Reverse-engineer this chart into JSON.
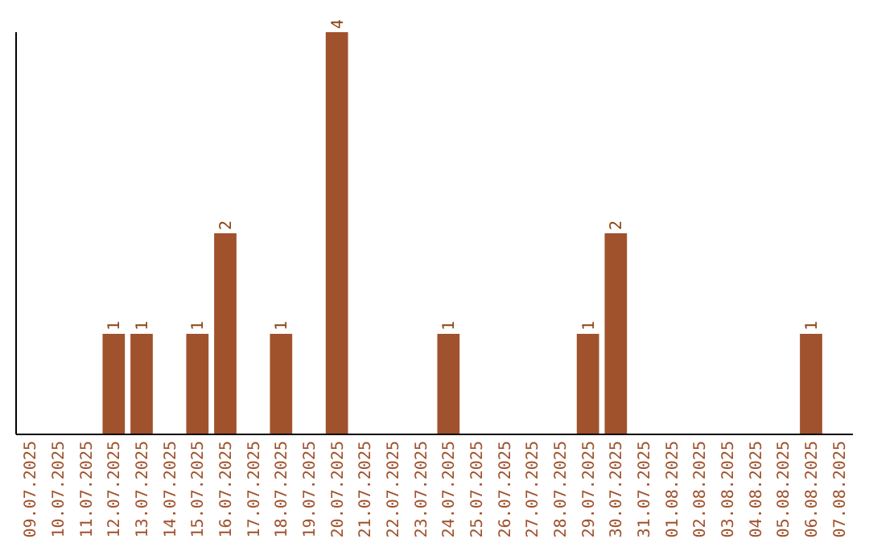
{
  "chart_data": {
    "type": "bar",
    "categories": [
      "09.07.2025",
      "10.07.2025",
      "11.07.2025",
      "12.07.2025",
      "13.07.2025",
      "14.07.2025",
      "15.07.2025",
      "16.07.2025",
      "17.07.2025",
      "18.07.2025",
      "19.07.2025",
      "20.07.2025",
      "21.07.2025",
      "22.07.2025",
      "23.07.2025",
      "24.07.2025",
      "25.07.2025",
      "26.07.2025",
      "27.07.2025",
      "28.07.2025",
      "29.07.2025",
      "30.07.2025",
      "31.07.2025",
      "01.08.2025",
      "02.08.2025",
      "03.08.2025",
      "04.08.2025",
      "05.08.2025",
      "06.08.2025",
      "07.08.2025"
    ],
    "values": [
      0,
      0,
      0,
      1,
      1,
      0,
      1,
      2,
      0,
      1,
      0,
      4,
      0,
      0,
      0,
      1,
      0,
      0,
      0,
      0,
      1,
      2,
      0,
      0,
      0,
      0,
      0,
      0,
      1,
      0
    ],
    "value_labels": [
      null,
      null,
      null,
      "1",
      "1",
      null,
      "1",
      "2",
      null,
      "1",
      null,
      "4",
      null,
      null,
      null,
      "1",
      null,
      null,
      null,
      null,
      "1",
      "2",
      null,
      null,
      null,
      null,
      null,
      null,
      "1",
      null
    ],
    "color": "#a0522d",
    "ylim": [
      0,
      4
    ],
    "tick_labels": "x",
    "grid": false
  }
}
